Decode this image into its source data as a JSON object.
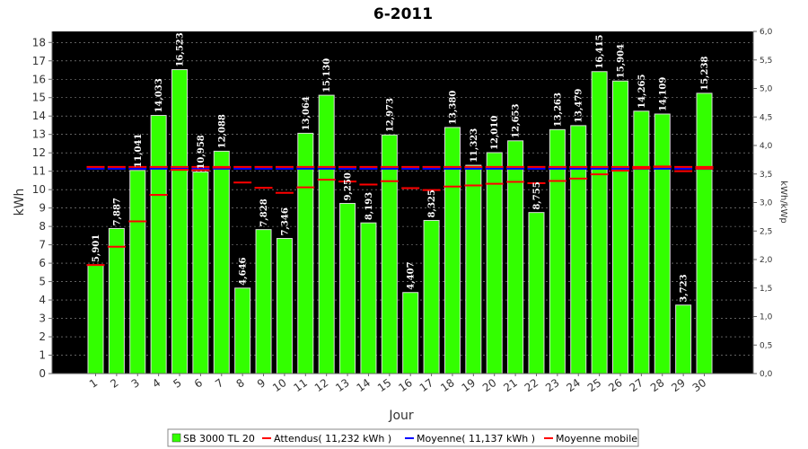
{
  "chart_data": {
    "type": "bar",
    "title": "6-2011",
    "xlabel": "Jour",
    "ylabel": "kWh",
    "y2label": "kWh/kWp",
    "ylim": [
      0,
      18.6
    ],
    "y2lim": [
      0,
      6.0
    ],
    "yticks": [
      "0",
      "1",
      "2",
      "3",
      "4",
      "5",
      "6",
      "7",
      "8",
      "9",
      "10",
      "11",
      "12",
      "13",
      "14",
      "15",
      "16",
      "17",
      "18"
    ],
    "y2ticks": [
      "0,0",
      "0,5",
      "1,0",
      "1,5",
      "2,0",
      "2,5",
      "3,0",
      "3,5",
      "4,0",
      "4,5",
      "5,0",
      "5,5",
      "6,0"
    ],
    "grid": true,
    "legend_position": "bottom",
    "categories": [
      "1",
      "2",
      "3",
      "4",
      "5",
      "6",
      "7",
      "8",
      "9",
      "10",
      "11",
      "12",
      "13",
      "14",
      "15",
      "16",
      "17",
      "18",
      "19",
      "20",
      "21",
      "22",
      "23",
      "24",
      "25",
      "26",
      "27",
      "28",
      "29",
      "30"
    ],
    "series": [
      {
        "name": "SB 3000 TL 20",
        "type": "bar",
        "color": "#33ff00",
        "values": [
          5.901,
          7.887,
          11.041,
          14.033,
          16.523,
          10.958,
          12.088,
          4.646,
          7.828,
          7.346,
          13.064,
          15.13,
          9.25,
          8.193,
          12.973,
          4.407,
          8.325,
          13.38,
          11.323,
          12.01,
          12.653,
          8.755,
          13.263,
          13.479,
          16.415,
          15.904,
          14.265,
          14.109,
          3.723,
          15.238
        ],
        "labels": [
          "5,901",
          "7,887",
          "11,041",
          "14,033",
          "16,523",
          "10,958",
          "12,088",
          "4,646",
          "7,828",
          "7,346",
          "13,064",
          "15,130",
          "9,250",
          "8,193",
          "12,973",
          "4,407",
          "8,325",
          "13,380",
          "11,323",
          "12,010",
          "12,653",
          "8,755",
          "13,263",
          "13,479",
          "16,415",
          "15,904",
          "14,265",
          "14,109",
          "3,723",
          "15,238"
        ]
      },
      {
        "name": "Attendus( 11,232 kWh )",
        "type": "marker",
        "color": "#ff0000",
        "values": [
          11.232,
          11.232,
          11.232,
          11.232,
          11.232,
          11.232,
          11.232,
          11.232,
          11.232,
          11.232,
          11.232,
          11.232,
          11.232,
          11.232,
          11.232,
          11.232,
          11.232,
          11.232,
          11.232,
          11.232,
          11.232,
          11.232,
          11.232,
          11.232,
          11.232,
          11.232,
          11.232,
          11.232,
          11.232,
          11.232
        ]
      },
      {
        "name": "Moyenne( 11,137 kWh )",
        "type": "marker",
        "color": "#0000ff",
        "values": [
          11.137,
          11.137,
          11.137,
          11.137,
          11.137,
          11.137,
          11.137,
          11.137,
          11.137,
          11.137,
          11.137,
          11.137,
          11.137,
          11.137,
          11.137,
          11.137,
          11.137,
          11.137,
          11.137,
          11.137,
          11.137,
          11.137,
          11.137,
          11.137,
          11.137,
          11.137,
          11.137,
          11.137,
          11.137,
          11.137
        ]
      },
      {
        "name": "Moyenne mobile",
        "type": "marker",
        "color": "#ff0000",
        "values": [
          5.901,
          6.894,
          8.276,
          9.716,
          11.077,
          11.057,
          11.204,
          10.385,
          10.101,
          9.826,
          10.121,
          10.538,
          10.439,
          10.279,
          10.459,
          10.081,
          9.978,
          10.167,
          10.228,
          10.317,
          10.424,
          10.348,
          10.47,
          10.6,
          10.832,
          11.036,
          11.154,
          11.259,
          11.0,
          11.141
        ]
      }
    ]
  }
}
